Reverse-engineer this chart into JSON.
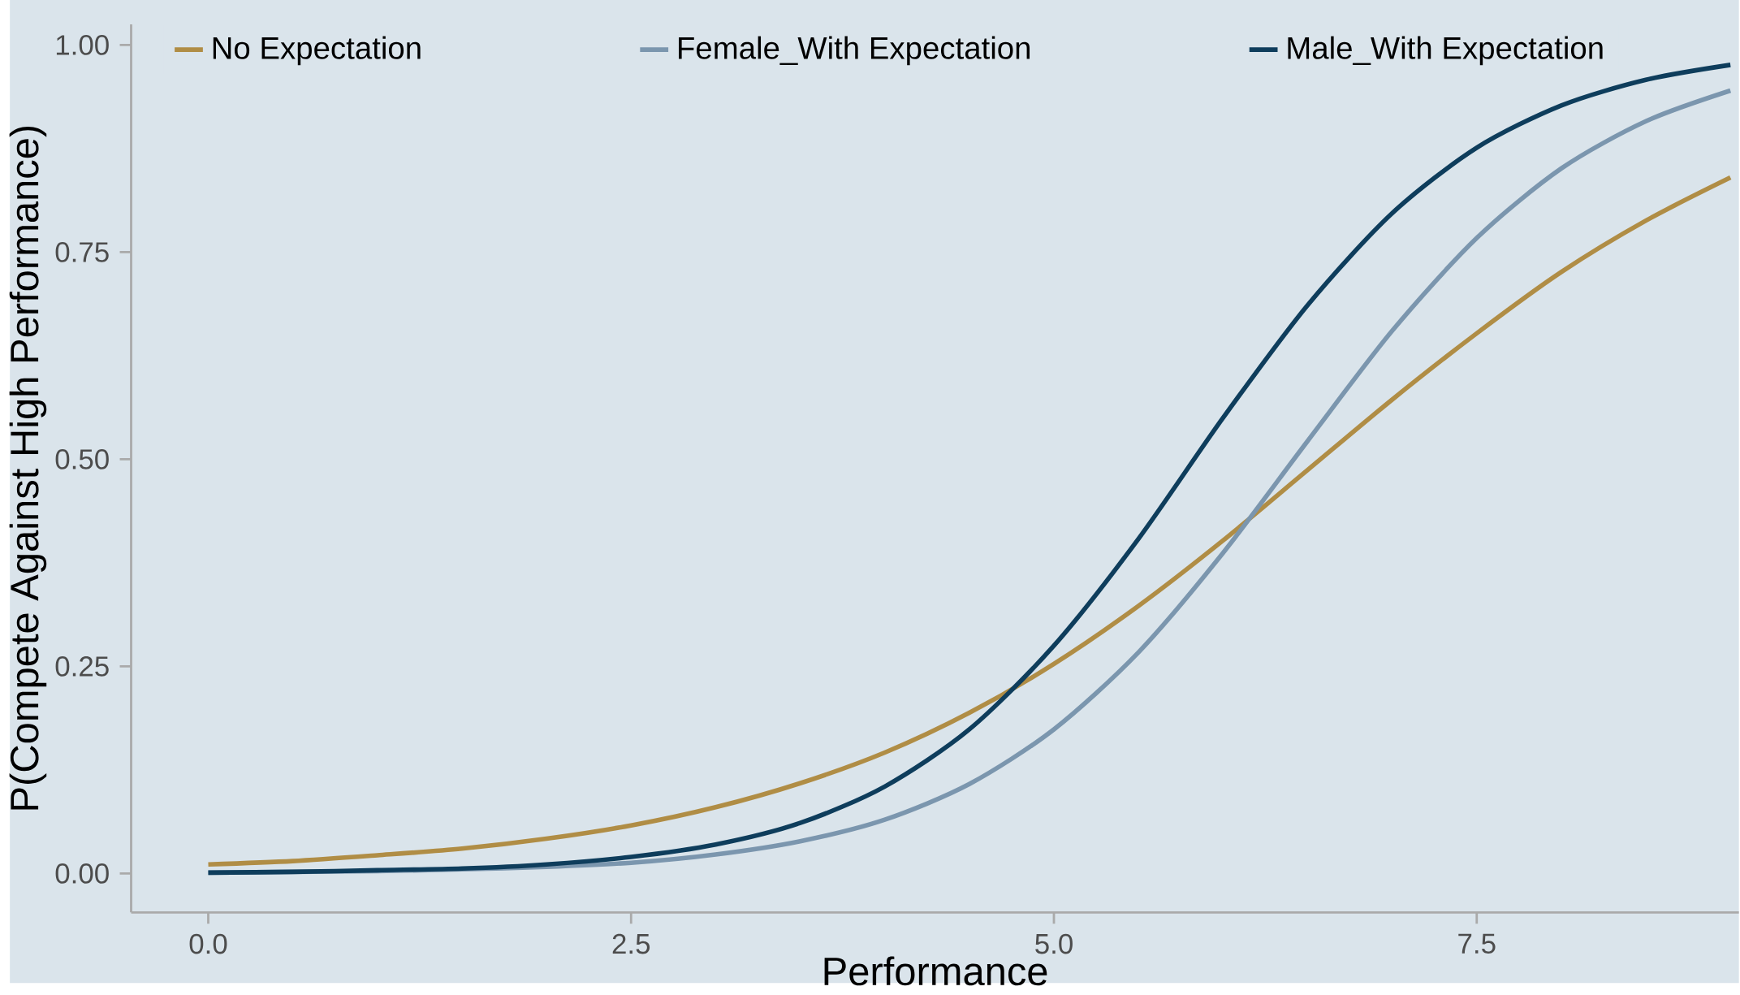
{
  "chart_data": {
    "type": "line",
    "xlabel": "Performance",
    "ylabel": "P(Compete Against High Performance)",
    "x": [
      0,
      0.5,
      1,
      1.5,
      2,
      2.5,
      3,
      3.5,
      4,
      4.5,
      5,
      5.5,
      6,
      6.5,
      7,
      7.5,
      8,
      8.5,
      9
    ],
    "series": [
      {
        "name": "No Expectation",
        "color": "#b08d45",
        "values": [
          0.011,
          0.015,
          0.022,
          0.03,
          0.042,
          0.058,
          0.08,
          0.109,
          0.146,
          0.194,
          0.253,
          0.323,
          0.402,
          0.487,
          0.572,
          0.652,
          0.726,
          0.788,
          0.84
        ]
      },
      {
        "name": "Female_With Expectation",
        "color": "#7b96ae",
        "values": [
          0.001,
          0.002,
          0.003,
          0.005,
          0.008,
          0.013,
          0.023,
          0.039,
          0.065,
          0.108,
          0.174,
          0.267,
          0.387,
          0.522,
          0.655,
          0.767,
          0.851,
          0.908,
          0.945
        ]
      },
      {
        "name": "Male_With Expectation",
        "color": "#0e3d5c",
        "values": [
          0.001,
          0.002,
          0.004,
          0.006,
          0.011,
          0.02,
          0.035,
          0.061,
          0.105,
          0.174,
          0.275,
          0.404,
          0.55,
          0.686,
          0.797,
          0.876,
          0.927,
          0.958,
          0.976
        ]
      }
    ],
    "xlim": [
      -0.456,
      9.05
    ],
    "ylim": [
      -0.047,
      1.025
    ],
    "xticks": [
      {
        "value": 0,
        "label": "0.0"
      },
      {
        "value": 2.5,
        "label": "2.5"
      },
      {
        "value": 5,
        "label": "5.0"
      },
      {
        "value": 7.5,
        "label": "7.5"
      }
    ],
    "yticks": [
      {
        "value": 0,
        "label": "0.00"
      },
      {
        "value": 0.25,
        "label": "0.25"
      },
      {
        "value": 0.5,
        "label": "0.50"
      },
      {
        "value": 0.75,
        "label": "0.75"
      },
      {
        "value": 1,
        "label": "1.00"
      }
    ],
    "grid": false,
    "legend": "top left",
    "marker": "none",
    "line_style": "solid"
  }
}
